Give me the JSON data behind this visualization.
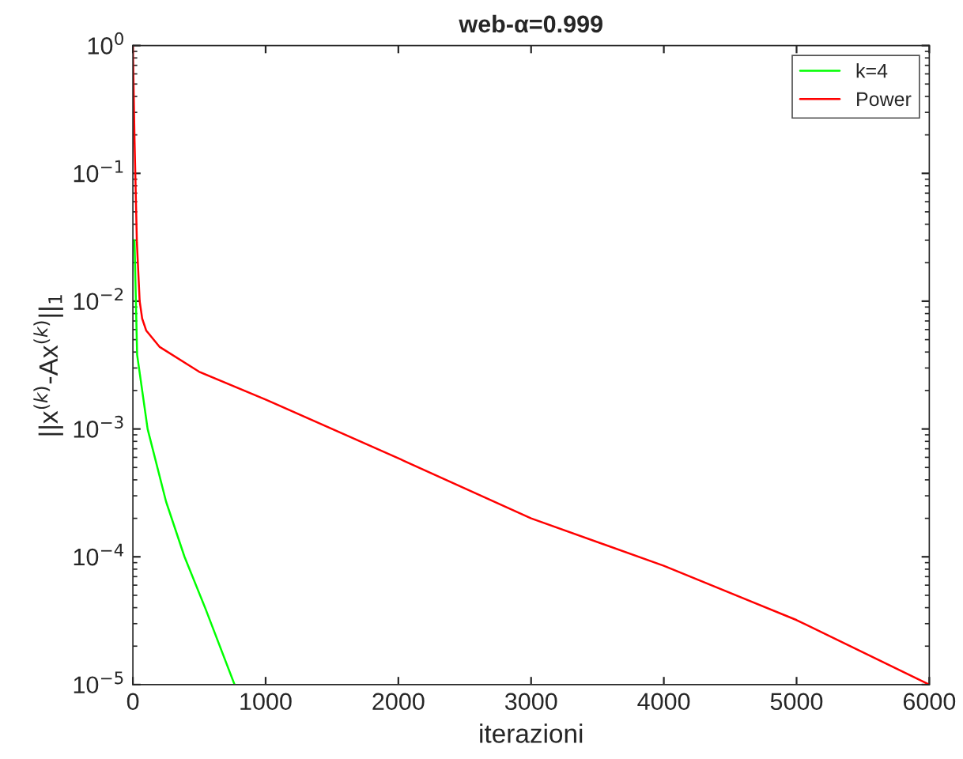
{
  "chart_data": {
    "type": "line",
    "title": "web-α=0.999",
    "xlabel": "iterazioni",
    "ylabel": "||x$^{(k)}$-Ax$^{(k)}$||$_{1}$",
    "log": "y",
    "xlim": [
      0,
      6000
    ],
    "ylim": [
      1e-05,
      1
    ],
    "xticks": [
      0,
      1000,
      2000,
      3000,
      4000,
      5000,
      6000
    ],
    "yticks": [
      {
        "value": 1e-05,
        "label": "10$^{−5}$"
      },
      {
        "value": 0.0001,
        "label": "10$^{−4}$"
      },
      {
        "value": 0.001,
        "label": "10$^{−3}$"
      },
      {
        "value": 0.01,
        "label": "10$^{−2}$"
      },
      {
        "value": 0.1,
        "label": "10$^{−1}$"
      },
      {
        "value": 1,
        "label": "10$^{0}$"
      }
    ],
    "legend": "top right",
    "grid": false,
    "marker": "none",
    "line_style": "solid",
    "series": [
      {
        "name": "k=4",
        "color": "#00ff00",
        "x": [
          12,
          32,
          111,
          250,
          389,
          548,
          766
        ],
        "values": [
          0.03,
          0.0038,
          0.001,
          0.00027,
          0.0001,
          3.9e-05,
          1e-05
        ]
      },
      {
        "name": "Power",
        "color": "#ff0000",
        "x": [
          0,
          12,
          30,
          51,
          70,
          100,
          200,
          500,
          1000,
          2000,
          3000,
          4000,
          5000,
          6000
        ],
        "values": [
          1,
          0.19,
          0.029,
          0.01,
          0.0073,
          0.0059,
          0.0044,
          0.0028,
          0.0017,
          0.00059,
          0.0002,
          8.5e-05,
          3.2e-05,
          1e-05
        ]
      }
    ]
  }
}
